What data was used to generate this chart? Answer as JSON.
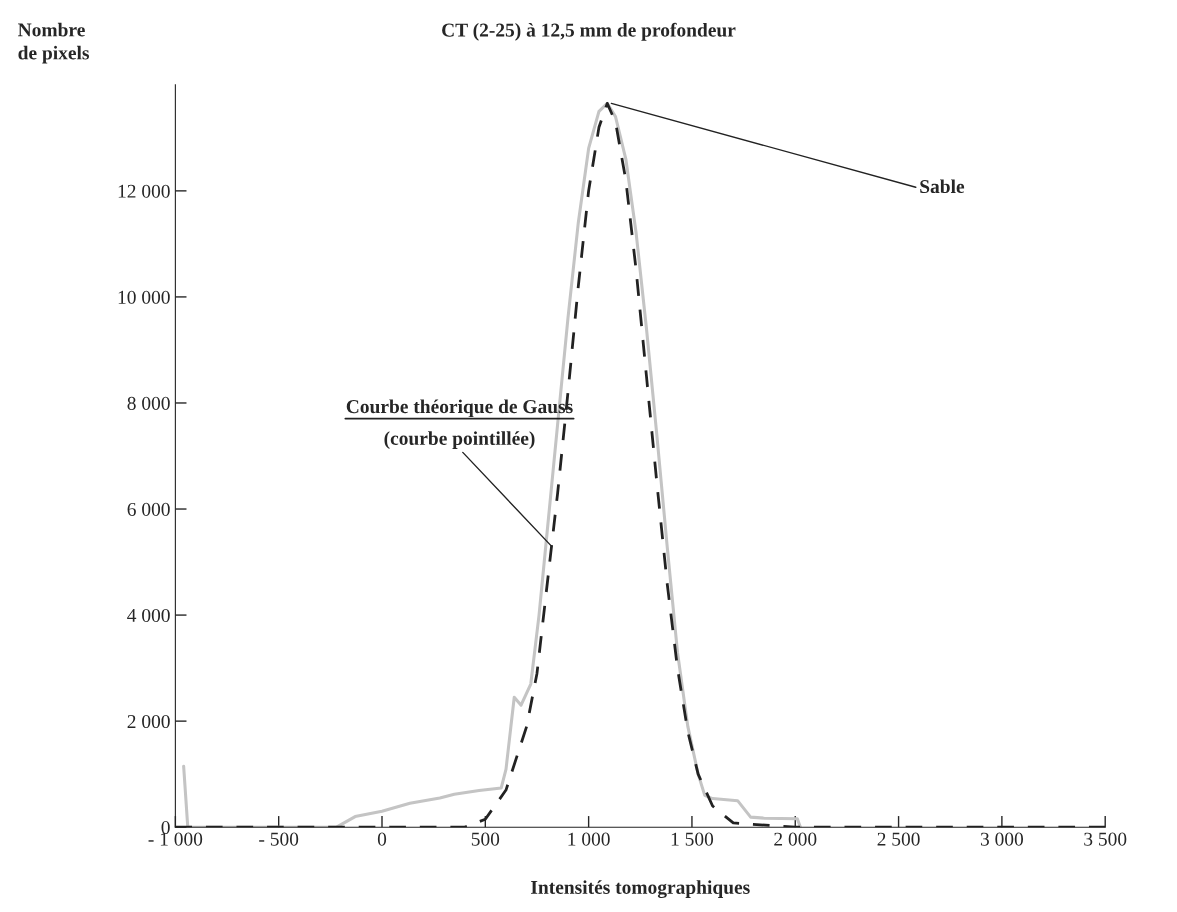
{
  "chart_data": {
    "type": "line",
    "title": "CT (2-25) à 12,5 mm de profondeur",
    "xlabel": "Intensités tomographiques",
    "ylabel": "Nombre\nde pixels",
    "xlim": [
      -1000,
      3500
    ],
    "ylim": [
      0,
      14000
    ],
    "xticks": [
      {
        "value": -1000,
        "label": "- 1 000"
      },
      {
        "value": -500,
        "label": "- 500"
      },
      0,
      500,
      {
        "value": 1000,
        "label": "1 000"
      },
      {
        "value": 1500,
        "label": "1 500"
      },
      {
        "value": 2000,
        "label": "2 000"
      },
      {
        "value": 2500,
        "label": "2 500"
      },
      {
        "value": 3000,
        "label": "3 000"
      },
      {
        "value": 3500,
        "label": "3 500"
      }
    ],
    "yticks": [
      0,
      {
        "value": 2000,
        "label": "2 000"
      },
      {
        "value": 4000,
        "label": "4 000"
      },
      {
        "value": 6000,
        "label": "6 000"
      },
      {
        "value": 8000,
        "label": "8 000"
      },
      {
        "value": 10000,
        "label": "10 000"
      },
      {
        "value": 12000,
        "label": "12 000"
      }
    ],
    "grid": false,
    "legend": false,
    "marker": "none",
    "series": [
      {
        "color": "#c4c4c4",
        "line_style": "solid",
        "x": [
          -960,
          -940,
          -220,
          -130,
          0,
          135,
          280,
          350,
          470,
          577,
          600,
          640,
          673,
          720,
          760,
          800,
          850,
          900,
          950,
          1000,
          1050,
          1090,
          1130,
          1180,
          1230,
          1280,
          1330,
          1380,
          1430,
          1480,
          1530,
          1562,
          1600,
          1721,
          1784,
          1850,
          2010,
          2025
        ],
        "values": [
          1150,
          0,
          0,
          200,
          300,
          450,
          550,
          620,
          690,
          740,
          1090,
          2450,
          2300,
          2700,
          4000,
          5600,
          7600,
          9600,
          11400,
          12800,
          13500,
          13650,
          13400,
          12600,
          11200,
          9400,
          7400,
          5300,
          3300,
          1900,
          1000,
          600,
          540,
          500,
          190,
          170,
          160,
          0
        ]
      },
      {
        "color": "#222222",
        "line_style": "dashed",
        "x": [
          -1000,
          400,
          500,
          600,
          700,
          750,
          800,
          850,
          900,
          950,
          1000,
          1050,
          1090,
          1130,
          1180,
          1230,
          1280,
          1330,
          1380,
          1430,
          1480,
          1530,
          1600,
          1700,
          2000,
          3500
        ],
        "values": [
          0,
          0,
          150,
          700,
          1900,
          2900,
          4600,
          6300,
          8200,
          10200,
          12000,
          13200,
          13650,
          13300,
          12200,
          10500,
          8500,
          6500,
          4600,
          3000,
          1800,
          1000,
          400,
          80,
          0,
          0
        ]
      }
    ],
    "annotations": [
      {
        "text": "Sable",
        "x": 1110,
        "y": 13650
      },
      "Courbe théorique de Gauss",
      {
        "text": "(courbe pointillée)",
        "x": 820,
        "y": 5300
      }
    ]
  }
}
